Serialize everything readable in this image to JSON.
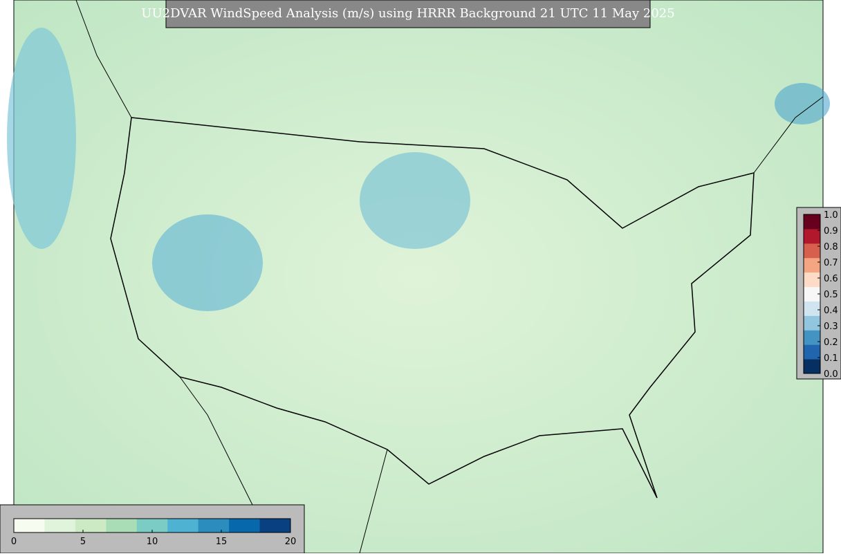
{
  "header": {
    "title": "UU2DVAR WindSpeed Analysis (m/s) using HRRR Background 21 UTC 11 May 2025"
  },
  "colorbar_main": {
    "lim": [
      0,
      20
    ],
    "ticks": [
      0,
      5,
      10,
      15,
      20
    ],
    "colors": [
      "#f7fcf0",
      "#e0f3db",
      "#ccebc5",
      "#a8ddb5",
      "#7bccc4",
      "#4eb3d3",
      "#2b8cbe",
      "#0868ac",
      "#084081"
    ]
  },
  "colorbar_side": {
    "lim": [
      0,
      1
    ],
    "ticks": [
      {
        "value": 0,
        "label": "0.0"
      },
      0.1,
      0.2,
      0.3,
      0.4,
      0.5,
      0.6,
      0.7,
      0.8,
      0.9,
      {
        "value": 1,
        "label": "1.0"
      }
    ],
    "colors": [
      "#053061",
      "#2166ac",
      "#4393c3",
      "#92c5de",
      "#d1e5f0",
      "#f7f7f7",
      "#fddbc7",
      "#f4a582",
      "#d6604d",
      "#b2182b",
      "#67001f"
    ]
  }
}
